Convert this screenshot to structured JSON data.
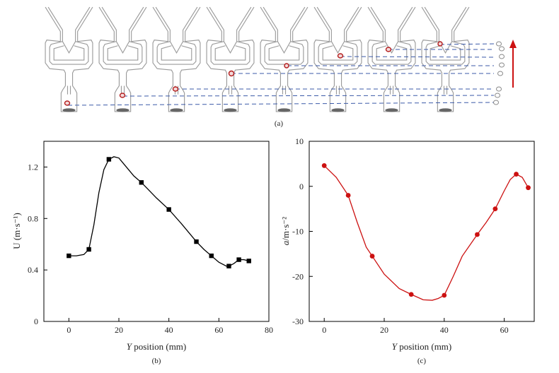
{
  "panels": {
    "a": {
      "label": "(a)",
      "frame_count": 8,
      "droplet_color": "#b31b1b",
      "trace_color": "#3b5aa8",
      "arrow_color": "#cc1111"
    },
    "b": {
      "label": "(b)"
    },
    "c": {
      "label": "(c)"
    }
  },
  "chart_data": [
    {
      "id": "b",
      "type": "line",
      "title": "",
      "xlabel_italic": "Y",
      "xlabel_rest": " position (mm)",
      "ylabel": "U (m·s⁻¹)",
      "xlim": [
        -10,
        80
      ],
      "ylim": [
        0,
        1.4
      ],
      "xticks": [
        0,
        20,
        40,
        60,
        80
      ],
      "yticks": [
        0,
        0.4,
        0.8,
        1.2
      ],
      "ytick_labels": [
        "0",
        "0.4",
        "0.8",
        "1.2"
      ],
      "marker": "square",
      "color": "#000000",
      "series": [
        {
          "name": "U",
          "x": [
            0,
            8,
            16,
            29,
            40,
            51,
            57,
            64,
            68,
            72
          ],
          "y": [
            0.51,
            0.56,
            1.26,
            1.08,
            0.87,
            0.62,
            0.51,
            0.43,
            0.48,
            0.47
          ]
        }
      ],
      "curve": {
        "x": [
          0,
          3,
          6,
          8,
          10,
          12,
          14,
          16,
          18,
          20,
          23,
          26,
          29,
          32,
          35,
          40,
          45,
          51,
          54,
          57,
          60,
          63,
          64,
          66,
          68,
          70,
          72
        ],
        "y": [
          0.51,
          0.51,
          0.52,
          0.56,
          0.75,
          1.0,
          1.18,
          1.26,
          1.28,
          1.27,
          1.2,
          1.13,
          1.08,
          1.02,
          0.96,
          0.87,
          0.76,
          0.62,
          0.56,
          0.51,
          0.46,
          0.43,
          0.43,
          0.45,
          0.48,
          0.48,
          0.47
        ]
      }
    },
    {
      "id": "c",
      "type": "line",
      "title": "",
      "xlabel_italic": "Y",
      "xlabel_rest": " position (mm)",
      "ylabel_italic": "a",
      "ylabel_rest": "/m·s⁻²",
      "xlim": [
        -5,
        70
      ],
      "ylim": [
        -30,
        10
      ],
      "xticks": [
        0,
        20,
        40,
        60
      ],
      "yticks": [
        -30,
        -20,
        -10,
        0,
        10
      ],
      "ytick_labels": [
        "-30",
        "-20",
        "-10",
        "0",
        "10"
      ],
      "marker": "circle",
      "color": "#cc1111",
      "series": [
        {
          "name": "a",
          "x": [
            0,
            8,
            16,
            29,
            40,
            51,
            57,
            64,
            68
          ],
          "y": [
            4.6,
            -2.0,
            -15.5,
            -24.0,
            -24.2,
            -10.7,
            -5.0,
            2.7,
            -0.3
          ]
        }
      ],
      "curve": {
        "x": [
          0,
          4,
          8,
          11,
          14,
          16,
          20,
          25,
          29,
          33,
          36,
          38,
          40,
          43,
          46,
          51,
          54,
          57,
          60,
          62,
          64,
          66,
          68
        ],
        "y": [
          4.6,
          2.0,
          -2.0,
          -8.0,
          -13.5,
          -15.5,
          -19.5,
          -22.7,
          -24.0,
          -25.2,
          -25.3,
          -24.9,
          -24.2,
          -20.0,
          -15.5,
          -10.7,
          -8.0,
          -5.0,
          -1.0,
          1.5,
          2.7,
          2.0,
          -0.3
        ]
      }
    }
  ]
}
